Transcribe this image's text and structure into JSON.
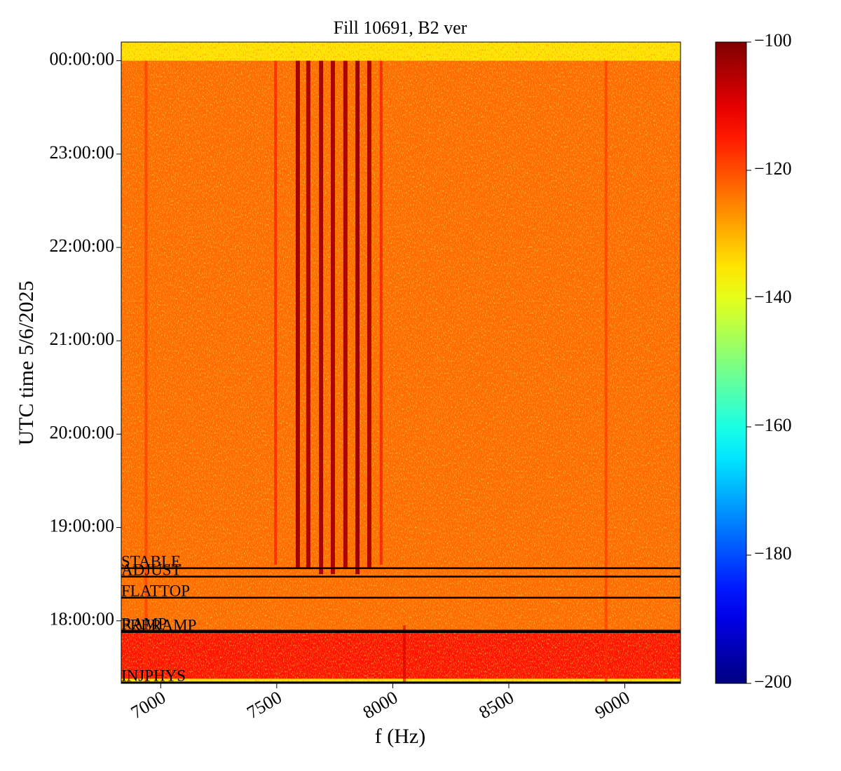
{
  "chart_data": {
    "type": "spectrogram",
    "title": "Fill 10691, B2 ver",
    "x_label": "f (Hz)",
    "y_label": "UTC time 5/6/2025",
    "xlim": [
      6830,
      9240
    ],
    "xticks": [
      7000,
      7500,
      8000,
      8500,
      9000
    ],
    "ylim": [
      17.33,
      24.2
    ],
    "yticks": [
      {
        "value": 18,
        "label": "18:00:00"
      },
      {
        "value": 19,
        "label": "19:00:00"
      },
      {
        "value": 20,
        "label": "20:00:00"
      },
      {
        "value": 21,
        "label": "21:00:00"
      },
      {
        "value": 22,
        "label": "22:00:00"
      },
      {
        "value": 23,
        "label": "23:00:00"
      },
      {
        "value": 24,
        "label": "00:00:00"
      }
    ],
    "colormap": "jet",
    "clim": [
      -200,
      -100
    ],
    "cticks": [
      {
        "value": -200,
        "label": "−200"
      },
      {
        "value": -180,
        "label": "−180"
      },
      {
        "value": -160,
        "label": "−160"
      },
      {
        "value": -140,
        "label": "−140"
      },
      {
        "value": -120,
        "label": "−120"
      },
      {
        "value": -100,
        "label": "−100"
      }
    ],
    "background": -123,
    "regions": [
      {
        "t0": 24,
        "t1": 24.2,
        "level": -135
      },
      {
        "t0": 17.33,
        "t1": 17.88,
        "level": -114
      },
      {
        "t0": 17.33,
        "t1": 17.38,
        "level": -135
      }
    ],
    "lines": [
      {
        "f": 6937,
        "t0": 17.33,
        "t1": 24,
        "level": -117
      },
      {
        "f": 7495,
        "t0": 18.6,
        "t1": 24,
        "level": -113
      },
      {
        "f": 7591,
        "t0": 18.56,
        "t1": 24,
        "level": -103
      },
      {
        "f": 7636,
        "t0": 18.56,
        "t1": 24,
        "level": -104
      },
      {
        "f": 7691,
        "t0": 18.5,
        "t1": 24,
        "level": -103
      },
      {
        "f": 7742,
        "t0": 18.5,
        "t1": 24,
        "level": -104
      },
      {
        "f": 7796,
        "t0": 18.56,
        "t1": 24,
        "level": -104
      },
      {
        "f": 7848,
        "t0": 18.5,
        "t1": 24,
        "level": -102
      },
      {
        "f": 7899,
        "t0": 18.56,
        "t1": 24,
        "level": -104
      },
      {
        "f": 7950,
        "t0": 18.6,
        "t1": 24,
        "level": -112
      },
      {
        "f": 8050,
        "t0": 17.33,
        "t1": 17.95,
        "level": -108
      },
      {
        "f": 8919,
        "t0": 17.33,
        "t1": 24,
        "level": -117
      }
    ],
    "annotations": [
      {
        "text": "STABLE",
        "value": 18.564
      },
      {
        "text": "ADJUST",
        "value": 18.474
      },
      {
        "text": "FLATTOP",
        "value": 18.248
      },
      {
        "text": "RAMP",
        "value": 17.895
      },
      {
        "text": "PRERAMP",
        "value": 17.88
      },
      {
        "text": "INJPHYS",
        "value": 17.34
      }
    ]
  }
}
